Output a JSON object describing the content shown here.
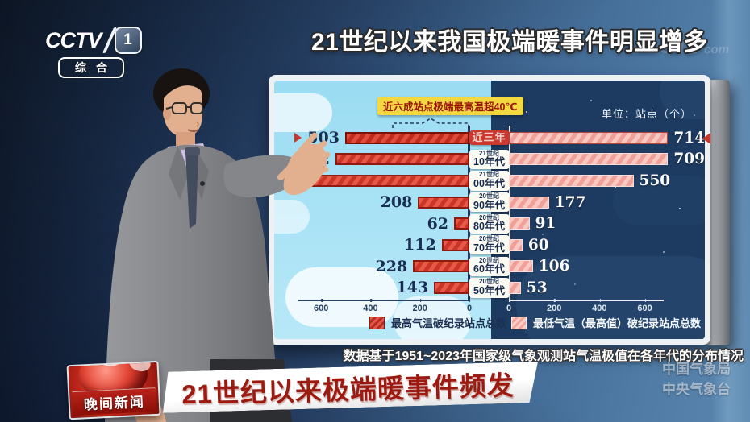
{
  "channel": {
    "name": "CCTV",
    "number": "1",
    "subtitle": "综合"
  },
  "header": {
    "title": "21世纪以来我国极端暖事件明显增多",
    "watermark_main": "CCTV",
    "watermark_suffix": "com"
  },
  "chart": {
    "callout": "近六成站点极端最高温超40℃",
    "unit_label": "单位：站点（个）",
    "legend_left": "最高气温破纪录站点总数",
    "legend_right": "最低气温（最高值）破纪录站点总数",
    "left_axis_ticks": [
      600,
      400,
      200,
      0
    ],
    "right_axis_ticks": [
      0,
      200,
      400,
      600
    ],
    "rows": [
      {
        "century": "",
        "period": "近三年",
        "left_label": "503",
        "left_value": 503,
        "left_draw": 503,
        "right_label": "714",
        "right_value": 714,
        "highlight": true
      },
      {
        "century": "21世纪",
        "period": "10年代",
        "left_label": "542",
        "left_value": 542,
        "left_draw": 542,
        "right_label": "709",
        "right_value": 709,
        "highlight": false
      },
      {
        "century": "21世纪",
        "period": "00年代",
        "left_label": "",
        "left_value": null,
        "left_draw": 660,
        "right_label": "550",
        "right_value": 550,
        "highlight": false
      },
      {
        "century": "20世纪",
        "period": "90年代",
        "left_label": "208",
        "left_value": 208,
        "left_draw": 208,
        "right_label": "177",
        "right_value": 177,
        "highlight": false
      },
      {
        "century": "20世纪",
        "period": "80年代",
        "left_label": "62",
        "left_value": 62,
        "left_draw": 62,
        "right_label": "91",
        "right_value": 91,
        "highlight": false
      },
      {
        "century": "20世纪",
        "period": "70年代",
        "left_label": "112",
        "left_value": 112,
        "left_draw": 112,
        "right_label": "60",
        "right_value": 60,
        "highlight": false
      },
      {
        "century": "20世纪",
        "period": "60年代",
        "left_label": "228",
        "left_value": 228,
        "left_draw": 228,
        "right_label": "106",
        "right_value": 106,
        "highlight": false
      },
      {
        "century": "20世纪",
        "period": "50年代",
        "left_label": "143",
        "left_value": 143,
        "left_draw": 143,
        "right_label": "53",
        "right_value": 53,
        "highlight": false
      }
    ]
  },
  "chart_data": {
    "type": "bar",
    "orientation": "horizontal-diverging",
    "categories": [
      "近三年",
      "21世纪10年代",
      "21世纪00年代",
      "20世纪90年代",
      "20世纪80年代",
      "20世纪70年代",
      "20世纪60年代",
      "20世纪50年代"
    ],
    "series": [
      {
        "name": "最高气温破纪录站点总数",
        "side": "left",
        "values": [
          503,
          542,
          null,
          208,
          62,
          112,
          228,
          143
        ]
      },
      {
        "name": "最低气温（最高值）破纪录站点总数",
        "side": "right",
        "values": [
          714,
          709,
          550,
          177,
          91,
          60,
          106,
          53
        ]
      }
    ],
    "title": "21世纪以来我国极端暖事件明显增多",
    "unit": "站点（个）",
    "annotation": "近六成站点极端最高温超40℃",
    "left_axis_ticks": [
      600,
      400,
      200,
      0
    ],
    "right_axis_ticks": [
      0,
      200,
      400,
      600
    ],
    "legend_position": "bottom",
    "grid": false
  },
  "footnote": "数据基于1951~2023年国家级气象观测站气温极值在各年代的分布情况",
  "banner": {
    "program": "晚间新闻",
    "headline": "21世纪以来极端暖事件频发"
  },
  "agency_watermark": {
    "line1": "中国气象局",
    "line2": "中央气象台"
  },
  "colors": {
    "bar_left": "#c8372d",
    "bar_right": "#f2a29a",
    "callout_bg": "#f4d83f",
    "highlight_badge": "#cb382d",
    "headline_text": "#9c1a10",
    "sky": "#a9e1f3",
    "night": "#1d3a60"
  }
}
